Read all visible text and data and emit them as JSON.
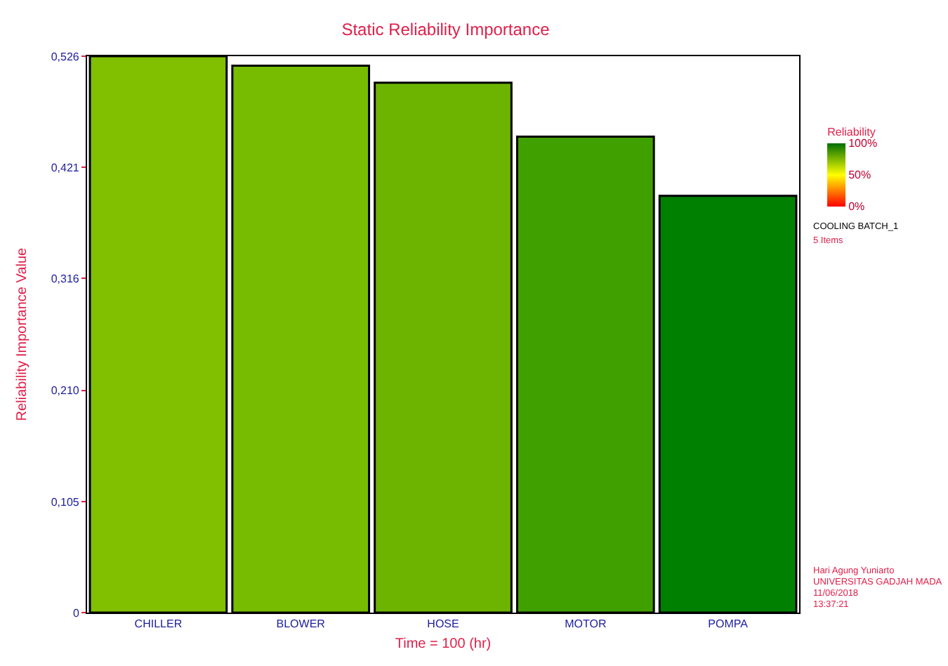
{
  "chart_data": {
    "type": "bar",
    "title": "Static Reliability Importance",
    "xlabel": "Time = 100 (hr)",
    "ylabel": "Reliability Importance Value",
    "clabel": "Reliability",
    "categories": [
      "CHILLER",
      "BLOWER",
      "HOSE",
      "MOTOR",
      "POMPA"
    ],
    "values": [
      0.526,
      0.517,
      0.501,
      0.45,
      0.394
    ],
    "colors": [
      "#80c000",
      "#78bc00",
      "#6cb400",
      "#40a000",
      "#008000"
    ],
    "ylim": [
      0,
      0.526
    ],
    "yticks": [
      {
        "value": 0,
        "label": "0"
      },
      {
        "value": 0.105,
        "label": "0,105"
      },
      {
        "value": 0.21,
        "label": "0,210"
      },
      {
        "value": 0.316,
        "label": "0,316"
      },
      {
        "value": 0.421,
        "label": "0,421"
      },
      {
        "value": 0.526,
        "label": "0,526"
      }
    ],
    "clim": [
      0,
      100
    ],
    "cticks": [
      {
        "value": 0,
        "label": "0%"
      },
      {
        "value": 50,
        "label": "50%"
      },
      {
        "value": 100,
        "label": "100%"
      }
    ],
    "annotations": [
      "COOLING BATCH_1",
      "5 Items",
      "Hari Agung Yuniarto",
      "UNIVERSITAS GADJAH MADA",
      "11/06/2018",
      "13:37:21"
    ]
  }
}
